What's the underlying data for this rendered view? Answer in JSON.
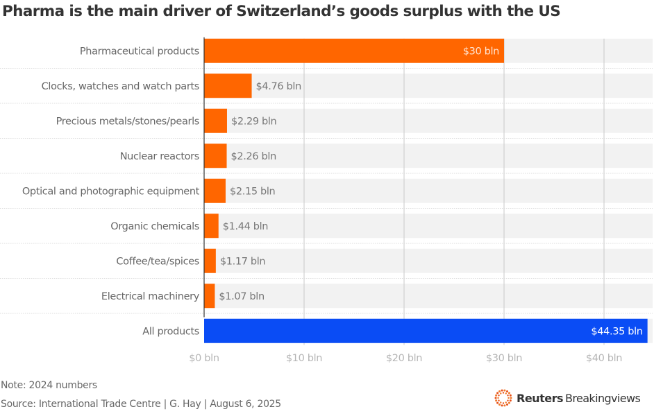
{
  "title": "Pharma is the main driver of Switzerland’s goods surplus with the US",
  "note": "Note: 2024 numbers",
  "source": "Source: International Trade Centre | G. Hay | August 6, 2025",
  "logo": {
    "icon": "reuters-dot-ring-icon",
    "brand": "Reuters",
    "product": "Breakingviews"
  },
  "colors": {
    "primary_bar": "#ff6600",
    "total_bar": "#0a4cf5",
    "track": "#f2f2f2",
    "grid": "#c8c8c8",
    "axis": "#333333"
  },
  "chart_data": {
    "type": "bar",
    "orientation": "horizontal",
    "title": "Pharma is the main driver of Switzerland’s goods surplus with the US",
    "xlabel": "",
    "ylabel": "",
    "units": "bln USD",
    "xlim": [
      0,
      45
    ],
    "grid": true,
    "x_ticks": [
      0,
      10,
      20,
      30,
      40
    ],
    "x_tick_labels": [
      "$0 bln",
      "$10 bln",
      "$20 bln",
      "$30 bln",
      "$40 bln"
    ],
    "categories": [
      "Pharmaceutical products",
      "Clocks, watches and watch parts",
      "Precious metals/stones/pearls",
      "Nuclear reactors",
      "Optical and photographic equipment",
      "Organic chemicals",
      "Coffee/tea/spices",
      "Electrical machinery",
      "All products"
    ],
    "values": [
      30,
      4.76,
      2.29,
      2.26,
      2.15,
      1.44,
      1.17,
      1.07,
      44.35
    ],
    "data_labels": [
      "$30 bln",
      "$4.76 bln",
      "$2.29 bln",
      "$2.26 bln",
      "$2.15 bln",
      "$1.44 bln",
      "$1.17 bln",
      "$1.07 bln",
      "$44.35 bln"
    ],
    "highlight": [
      "sector",
      "sector",
      "sector",
      "sector",
      "sector",
      "sector",
      "sector",
      "sector",
      "total"
    ],
    "legend": "none"
  }
}
